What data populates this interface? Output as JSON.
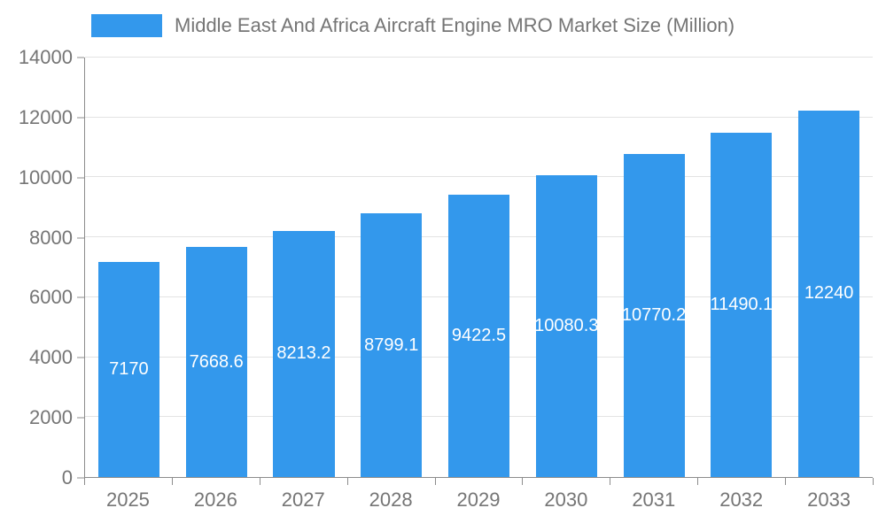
{
  "chart_data": {
    "type": "bar",
    "title": "Middle East And Africa Aircraft Engine MRO Market Size (Million)",
    "categories": [
      "2025",
      "2026",
      "2027",
      "2028",
      "2029",
      "2030",
      "2031",
      "2032",
      "2033"
    ],
    "values": [
      7170,
      7668.6,
      8213.2,
      8799.1,
      9422.5,
      10080.3,
      10770.2,
      11490.1,
      12240
    ],
    "bar_labels": [
      "7170",
      "7668.6",
      "8213.2",
      "8799.1",
      "9422.5",
      "10080.3",
      "10770.2",
      "11490.1",
      "12240"
    ],
    "xlabel": "",
    "ylabel": "",
    "ylim": [
      0,
      14000
    ],
    "yticks": [
      0,
      2000,
      4000,
      6000,
      8000,
      10000,
      12000,
      14000
    ],
    "grid": true,
    "legend_position": "top-left",
    "colors": {
      "bar": "#3398ec",
      "bar_label_text": "#ffffff",
      "axis_text": "#757575",
      "axis_line": "#8c8c8c",
      "gridline": "#e3e3e3",
      "background": "#ffffff"
    }
  }
}
